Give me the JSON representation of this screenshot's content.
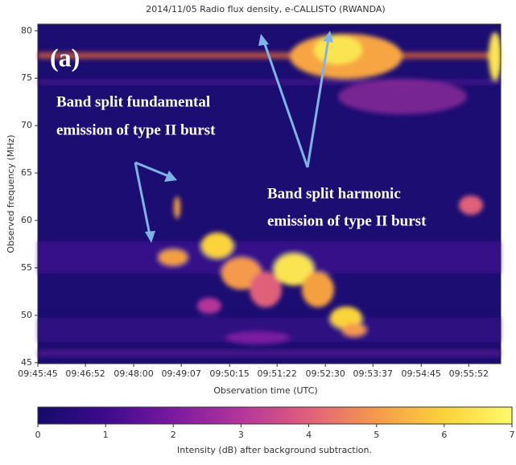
{
  "chart_data": {
    "type": "heatmap",
    "title": "2014/11/05  Radio flux density, e-CALLISTO (RWANDA)",
    "x_label": "Observation time (UTC)",
    "y_label": "Observed frequency (MHz)",
    "xlim": [
      35145,
      35797
    ],
    "xticks": [
      {
        "value": 35145,
        "label": "09:45:45"
      },
      {
        "value": 35212,
        "label": "09:46:52"
      },
      {
        "value": 35280,
        "label": "09:48:00"
      },
      {
        "value": 35347,
        "label": "09:49:07"
      },
      {
        "value": 35415,
        "label": "09:50:15"
      },
      {
        "value": 35482,
        "label": "09:51:22"
      },
      {
        "value": 35550,
        "label": "09:52:30"
      },
      {
        "value": 35617,
        "label": "09:53:37"
      },
      {
        "value": 35685,
        "label": "09:54:45"
      },
      {
        "value": 35752,
        "label": "09:55:52"
      }
    ],
    "ylim": [
      44.9,
      80.7
    ],
    "yticks": [
      45,
      50,
      55,
      60,
      65,
      70,
      75,
      80
    ],
    "colorbar": {
      "label": "Intensity (dB) after background subtraction.",
      "clim": [
        0,
        7
      ],
      "ticks": [
        0,
        1,
        2,
        3,
        4,
        5,
        6,
        7
      ],
      "colormap": [
        "#140b6b",
        "#3d0a8c",
        "#7a1aa0",
        "#b4359a",
        "#e0607a",
        "#f59a4c",
        "#fbd33b",
        "#fdfa6a"
      ]
    },
    "annotations": [
      "(a)",
      "Band split fundamental",
      "emission of type II burst",
      "Band split harmonic",
      "emission of type II burst"
    ]
  }
}
